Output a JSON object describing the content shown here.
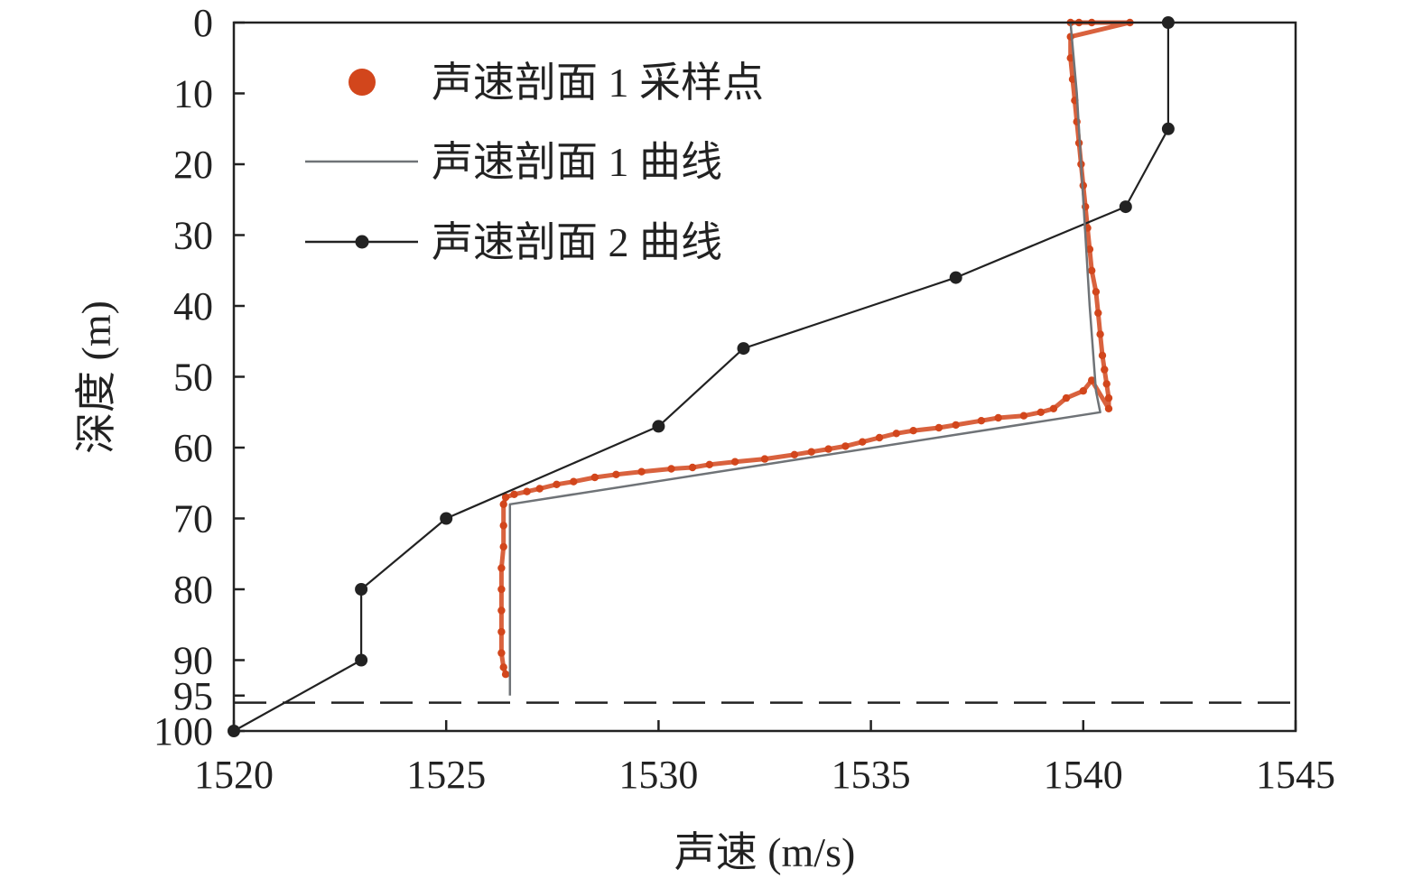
{
  "chart_data": {
    "type": "line",
    "title": "",
    "xlabel": "声速 (m/s)",
    "ylabel": "深度 (m)",
    "xlim": [
      1520,
      1545
    ],
    "ylim": [
      100,
      0
    ],
    "y_inverted": true,
    "x_ticks": [
      1520,
      1525,
      1530,
      1535,
      1540,
      1545
    ],
    "x_tick_labels": [
      "1520",
      "1525",
      "1530",
      "1535",
      "1540",
      "1545"
    ],
    "y_ticks": [
      0,
      10,
      20,
      30,
      40,
      50,
      60,
      70,
      80,
      90,
      95,
      100
    ],
    "y_tick_labels": [
      "0",
      "10",
      "20",
      "30",
      "40",
      "50",
      "60",
      "70",
      "80",
      "90",
      "95",
      "100"
    ],
    "grid": false,
    "legend_position": "top-left",
    "reference_line": {
      "y": 96,
      "style": "dashed",
      "color": "#222222"
    },
    "series": [
      {
        "name": "声速剖面 1 采样点",
        "kind": "scatter",
        "color": "#d2461c",
        "points": [
          [
            1539.7,
            0
          ],
          [
            1539.9,
            0
          ],
          [
            1540.2,
            0
          ],
          [
            1541.1,
            0
          ],
          [
            1539.7,
            2
          ],
          [
            1539.7,
            5
          ],
          [
            1539.75,
            8
          ],
          [
            1539.8,
            11
          ],
          [
            1539.85,
            14
          ],
          [
            1539.9,
            17
          ],
          [
            1539.95,
            20
          ],
          [
            1540.0,
            23
          ],
          [
            1540.05,
            26
          ],
          [
            1540.1,
            29
          ],
          [
            1540.15,
            32
          ],
          [
            1540.2,
            35
          ],
          [
            1540.3,
            38
          ],
          [
            1540.35,
            41
          ],
          [
            1540.4,
            44
          ],
          [
            1540.45,
            47
          ],
          [
            1540.5,
            49
          ],
          [
            1540.55,
            51
          ],
          [
            1540.6,
            53
          ],
          [
            1540.6,
            54.5
          ],
          [
            1540.2,
            50.5
          ],
          [
            1540.0,
            52
          ],
          [
            1539.6,
            53
          ],
          [
            1539.3,
            54.5
          ],
          [
            1539.0,
            55
          ],
          [
            1538.6,
            55.5
          ],
          [
            1538.0,
            55.8
          ],
          [
            1537.6,
            56.2
          ],
          [
            1537.0,
            56.8
          ],
          [
            1536.6,
            57.2
          ],
          [
            1536.0,
            57.6
          ],
          [
            1535.6,
            58.0
          ],
          [
            1535.2,
            58.6
          ],
          [
            1534.8,
            59.2
          ],
          [
            1534.4,
            59.8
          ],
          [
            1534.0,
            60.2
          ],
          [
            1533.6,
            60.6
          ],
          [
            1533.2,
            61.0
          ],
          [
            1532.5,
            61.6
          ],
          [
            1531.8,
            62.0
          ],
          [
            1531.2,
            62.4
          ],
          [
            1530.8,
            62.8
          ],
          [
            1530.3,
            63.0
          ],
          [
            1529.6,
            63.4
          ],
          [
            1529.0,
            63.8
          ],
          [
            1528.5,
            64.2
          ],
          [
            1528.0,
            64.8
          ],
          [
            1527.6,
            65.2
          ],
          [
            1527.2,
            65.8
          ],
          [
            1526.9,
            66.2
          ],
          [
            1526.6,
            66.6
          ],
          [
            1526.4,
            67.0
          ],
          [
            1526.35,
            68
          ],
          [
            1526.35,
            71
          ],
          [
            1526.35,
            74
          ],
          [
            1526.3,
            77
          ],
          [
            1526.3,
            80
          ],
          [
            1526.3,
            83
          ],
          [
            1526.3,
            86
          ],
          [
            1526.3,
            89
          ],
          [
            1526.35,
            91
          ],
          [
            1526.4,
            92
          ]
        ]
      },
      {
        "name": "声速剖面 1 曲线",
        "kind": "line",
        "color": "#6f7377",
        "points": [
          [
            1539.7,
            0
          ],
          [
            1539.85,
            10
          ],
          [
            1540.0,
            25
          ],
          [
            1540.15,
            40
          ],
          [
            1540.3,
            52
          ],
          [
            1540.4,
            55
          ],
          [
            1526.5,
            68
          ],
          [
            1526.5,
            80
          ],
          [
            1526.5,
            95
          ]
        ]
      },
      {
        "name": "声速剖面 2 曲线",
        "kind": "line-marker",
        "color": "#222222",
        "points": [
          [
            1542,
            0
          ],
          [
            1542,
            15
          ],
          [
            1541,
            26
          ],
          [
            1537,
            36
          ],
          [
            1532,
            46
          ],
          [
            1530,
            57
          ],
          [
            1525,
            70
          ],
          [
            1523,
            80
          ],
          [
            1523,
            90
          ],
          [
            1520,
            100
          ]
        ]
      }
    ]
  }
}
